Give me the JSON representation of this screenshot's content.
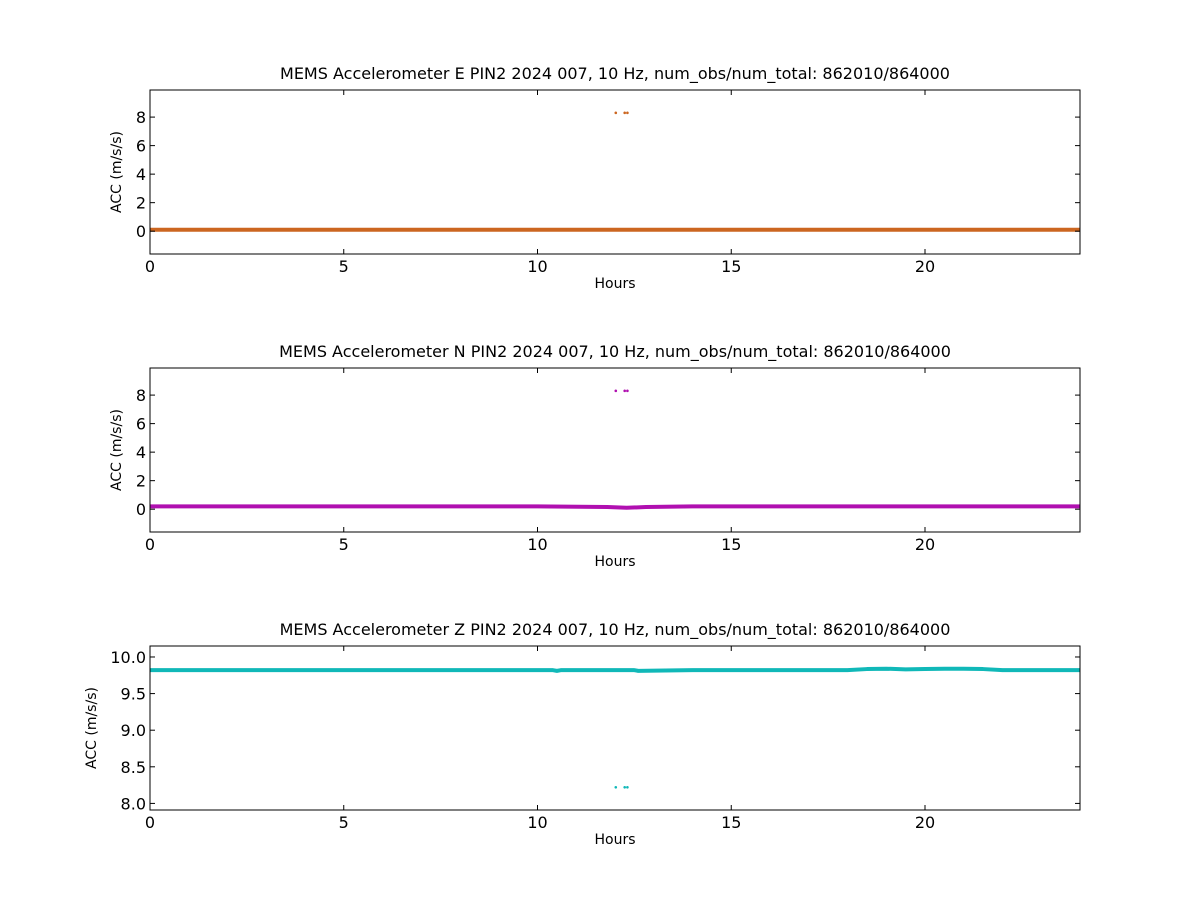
{
  "chart_data": [
    {
      "type": "line",
      "title": "MEMS Accelerometer E PIN2 2024 007, 10 Hz, num_obs/num_total: 862010/864000",
      "xlabel": "Hours",
      "ylabel": "ACC (m/s/s)",
      "xlim": [
        0,
        24
      ],
      "ylim": [
        -1.6,
        9.9
      ],
      "xticks": [
        0,
        5,
        10,
        15,
        20
      ],
      "yticks": [
        0,
        2,
        4,
        6,
        8
      ],
      "grid": false,
      "color": "#cc6620",
      "series": [
        {
          "x": [
            0,
            2,
            4,
            6,
            8,
            10,
            12,
            14,
            16,
            18,
            20,
            22,
            24
          ],
          "y": [
            0.1,
            0.1,
            0.1,
            0.1,
            0.1,
            0.1,
            0.1,
            0.1,
            0.1,
            0.1,
            0.1,
            0.1,
            0.1
          ]
        }
      ],
      "outliers": {
        "x": [
          12.02,
          12.25,
          12.32
        ],
        "y": [
          8.3,
          8.3,
          8.3
        ]
      }
    },
    {
      "type": "line",
      "title": "MEMS Accelerometer N PIN2 2024 007, 10 Hz, num_obs/num_total: 862010/864000",
      "xlabel": "Hours",
      "ylabel": "ACC (m/s/s)",
      "xlim": [
        0,
        24
      ],
      "ylim": [
        -1.6,
        9.9
      ],
      "xticks": [
        0,
        5,
        10,
        15,
        20
      ],
      "yticks": [
        0,
        2,
        4,
        6,
        8
      ],
      "grid": false,
      "color": "#b010b0",
      "series": [
        {
          "x": [
            0,
            2,
            4,
            6,
            8,
            10,
            11.8,
            12.3,
            12.8,
            14,
            16,
            18,
            20,
            22,
            24
          ],
          "y": [
            0.2,
            0.2,
            0.2,
            0.2,
            0.2,
            0.2,
            0.15,
            0.1,
            0.15,
            0.2,
            0.2,
            0.2,
            0.2,
            0.2,
            0.2
          ]
        }
      ],
      "outliers": {
        "x": [
          12.02,
          12.25,
          12.32
        ],
        "y": [
          8.3,
          8.3,
          8.3
        ]
      }
    },
    {
      "type": "line",
      "title": "MEMS Accelerometer Z PIN2 2024 007, 10 Hz, num_obs/num_total: 862010/864000",
      "xlabel": "Hours",
      "ylabel": "ACC (m/s/s)",
      "xlim": [
        0,
        24
      ],
      "ylim": [
        7.91,
        10.15
      ],
      "xticks": [
        0,
        5,
        10,
        15,
        20
      ],
      "yticks": [
        8.0,
        8.5,
        9.0,
        9.5,
        10.0
      ],
      "ytick_labels": [
        "8.0",
        "8.5",
        "9.0",
        "9.5",
        "10.0"
      ],
      "grid": false,
      "color": "#10b8b8",
      "series": [
        {
          "x": [
            0,
            4,
            8,
            10.4,
            10.5,
            10.6,
            12,
            12.5,
            12.6,
            14,
            17,
            18,
            18.5,
            19,
            19.5,
            20,
            20.5,
            21,
            21.5,
            22,
            24
          ],
          "y": [
            9.82,
            9.82,
            9.82,
            9.82,
            9.81,
            9.82,
            9.82,
            9.82,
            9.81,
            9.82,
            9.82,
            9.82,
            9.835,
            9.84,
            9.83,
            9.835,
            9.84,
            9.84,
            9.835,
            9.82,
            9.82
          ]
        }
      ],
      "outliers": {
        "x": [
          12.02,
          12.25,
          12.32
        ],
        "y": [
          8.22,
          8.22,
          8.22
        ]
      }
    }
  ]
}
